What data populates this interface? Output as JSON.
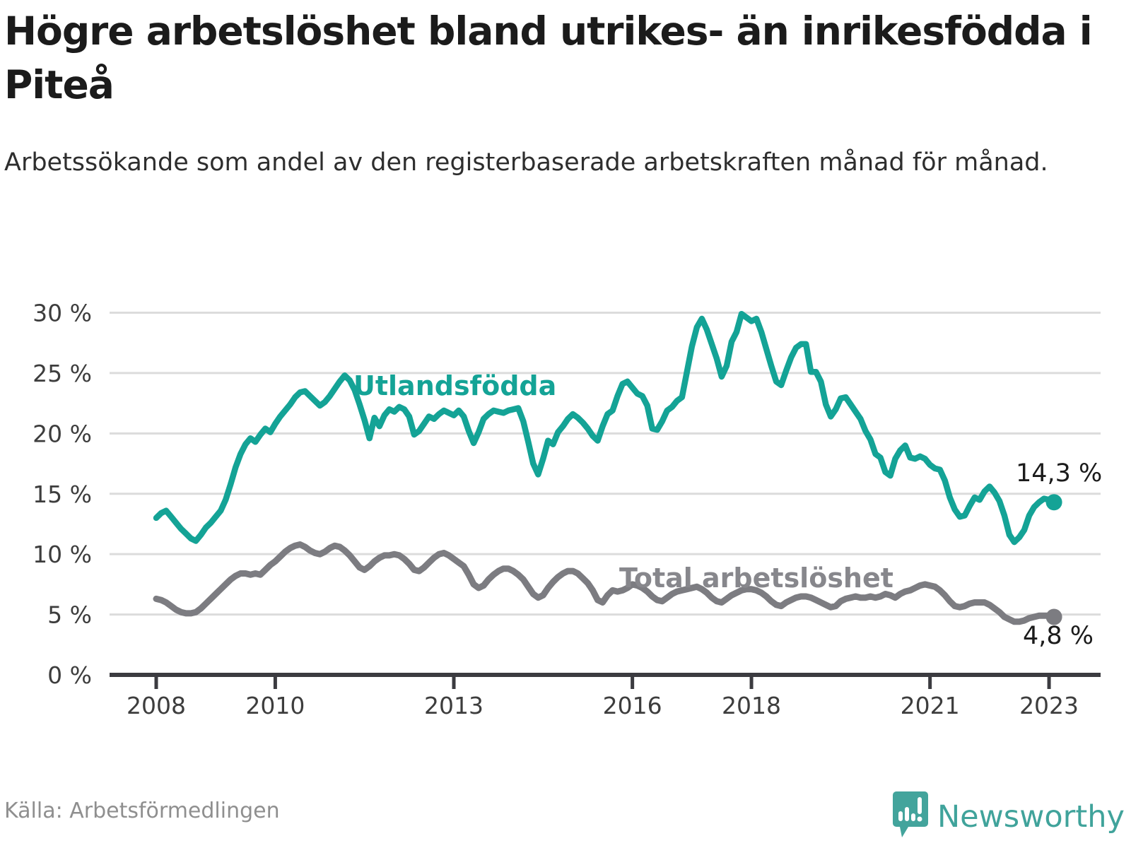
{
  "title": "Högre arbetslöshet bland utrikes- än inrikesfödda i Piteå",
  "subtitle": "Arbetssökande som andel av den registerbaserade arbetskraften månad för månad.",
  "source": "Källa: Arbetsförmedlingen",
  "logo": {
    "text": "Newsworthy"
  },
  "annotations": {
    "utlandsfodda_label": "Utlandsfödda",
    "total_label": "Total arbetslöshet",
    "end_value_utlandsfodda": "14,3 %",
    "end_value_total": "4,8 %"
  },
  "colors": {
    "teal": "#14a396",
    "gray_line": "#7c7c81",
    "gray_label": "#87878c",
    "grid": "#dcdcdc",
    "axis": "#3b3b40",
    "logo_teal": "#40a39b"
  },
  "chart_data": {
    "type": "line",
    "title": "Högre arbetslöshet bland utrikes- än inrikesfödda i Piteå",
    "ylabel": "Arbetssökande som andel av den registerbaserade arbetskraften",
    "unit": "%",
    "x_start": "2008-01",
    "x_end": "2023-02",
    "x_frequency": "monthly",
    "grid": "horizontal-only",
    "ylim": [
      0,
      30
    ],
    "y_ticks": [
      {
        "value": 0,
        "label": "0 %"
      },
      {
        "value": 5,
        "label": "5 %"
      },
      {
        "value": 10,
        "label": "10 %"
      },
      {
        "value": 15,
        "label": "15 %"
      },
      {
        "value": 20,
        "label": "20 %"
      },
      {
        "value": 25,
        "label": "25 %"
      },
      {
        "value": 30,
        "label": "30 %"
      }
    ],
    "x_ticks": [
      {
        "month_index": 0,
        "label": "2008"
      },
      {
        "month_index": 24,
        "label": "2010"
      },
      {
        "month_index": 60,
        "label": "2013"
      },
      {
        "month_index": 96,
        "label": "2016"
      },
      {
        "month_index": 120,
        "label": "2018"
      },
      {
        "month_index": 156,
        "label": "2021"
      },
      {
        "month_index": 180,
        "label": "2023"
      }
    ],
    "series": [
      {
        "name": "Utlandsfödda",
        "color": "#14a396",
        "width": 8.5,
        "last_value_label": "14,3 %",
        "values": [
          13.0,
          13.4,
          13.6,
          13.1,
          12.6,
          12.1,
          11.7,
          11.3,
          11.1,
          11.6,
          12.2,
          12.6,
          13.1,
          13.6,
          14.5,
          15.8,
          17.2,
          18.3,
          19.1,
          19.6,
          19.3,
          19.9,
          20.4,
          20.1,
          20.8,
          21.4,
          21.9,
          22.4,
          23.0,
          23.4,
          23.5,
          23.1,
          22.7,
          22.3,
          22.6,
          23.1,
          23.7,
          24.3,
          24.8,
          24.4,
          23.6,
          22.4,
          21.1,
          19.6,
          21.3,
          20.6,
          21.5,
          22.0,
          21.8,
          22.2,
          22.0,
          21.4,
          19.9,
          20.2,
          20.8,
          21.4,
          21.2,
          21.6,
          21.9,
          21.7,
          21.5,
          21.9,
          21.4,
          20.2,
          19.2,
          20.1,
          21.2,
          21.6,
          21.9,
          21.8,
          21.7,
          21.9,
          22.0,
          22.1,
          21.0,
          19.3,
          17.5,
          16.6,
          17.9,
          19.4,
          19.1,
          20.1,
          20.6,
          21.2,
          21.6,
          21.3,
          20.9,
          20.4,
          19.8,
          19.4,
          20.6,
          21.6,
          21.9,
          23.1,
          24.1,
          24.3,
          23.8,
          23.3,
          23.1,
          22.3,
          20.4,
          20.3,
          21.0,
          21.9,
          22.2,
          22.7,
          23.0,
          25.1,
          27.2,
          28.8,
          29.5,
          28.6,
          27.4,
          26.2,
          24.7,
          25.6,
          27.6,
          28.4,
          29.9,
          29.6,
          29.3,
          29.5,
          28.4,
          27.0,
          25.6,
          24.3,
          24.0,
          25.2,
          26.3,
          27.1,
          27.4,
          27.4,
          25.1,
          25.1,
          24.3,
          22.4,
          21.4,
          22.0,
          22.9,
          23.0,
          22.4,
          21.8,
          21.2,
          20.2,
          19.5,
          18.3,
          18.0,
          16.8,
          16.5,
          17.9,
          18.6,
          19.0,
          18.0,
          17.9,
          18.1,
          17.9,
          17.4,
          17.1,
          17.0,
          16.1,
          14.7,
          13.7,
          13.1,
          13.2,
          14.0,
          14.7,
          14.5,
          15.2,
          15.6,
          15.1,
          14.4,
          13.2,
          11.6,
          11.0,
          11.4,
          12.0,
          13.2,
          13.9,
          14.3,
          14.6,
          14.5,
          14.3
        ]
      },
      {
        "name": "Total arbetslöshet",
        "color": "#7c7c81",
        "width": 9,
        "last_value_label": "4,8 %",
        "values": [
          6.3,
          6.2,
          6.0,
          5.7,
          5.4,
          5.2,
          5.1,
          5.1,
          5.2,
          5.5,
          5.9,
          6.3,
          6.7,
          7.1,
          7.5,
          7.9,
          8.2,
          8.4,
          8.4,
          8.3,
          8.4,
          8.3,
          8.7,
          9.1,
          9.4,
          9.8,
          10.2,
          10.5,
          10.7,
          10.8,
          10.6,
          10.3,
          10.1,
          10.0,
          10.2,
          10.5,
          10.7,
          10.6,
          10.3,
          9.9,
          9.4,
          8.9,
          8.7,
          9.0,
          9.4,
          9.7,
          9.9,
          9.9,
          10.0,
          9.9,
          9.6,
          9.2,
          8.7,
          8.6,
          8.9,
          9.3,
          9.7,
          10.0,
          10.1,
          9.9,
          9.6,
          9.3,
          9.0,
          8.3,
          7.5,
          7.2,
          7.4,
          7.9,
          8.3,
          8.6,
          8.8,
          8.8,
          8.6,
          8.3,
          7.9,
          7.3,
          6.7,
          6.4,
          6.6,
          7.2,
          7.7,
          8.1,
          8.4,
          8.6,
          8.6,
          8.4,
          8.0,
          7.6,
          7.0,
          6.2,
          6.0,
          6.6,
          7.0,
          6.9,
          7.0,
          7.2,
          7.5,
          7.4,
          7.2,
          6.9,
          6.5,
          6.2,
          6.1,
          6.4,
          6.7,
          6.9,
          7.0,
          7.1,
          7.2,
          7.3,
          7.1,
          6.8,
          6.4,
          6.1,
          6.0,
          6.3,
          6.6,
          6.8,
          7.0,
          7.1,
          7.1,
          7.0,
          6.8,
          6.5,
          6.1,
          5.8,
          5.7,
          6.0,
          6.2,
          6.4,
          6.5,
          6.5,
          6.4,
          6.2,
          6.0,
          5.8,
          5.6,
          5.7,
          6.1,
          6.3,
          6.4,
          6.5,
          6.4,
          6.4,
          6.5,
          6.4,
          6.5,
          6.7,
          6.6,
          6.4,
          6.7,
          6.9,
          7.0,
          7.2,
          7.4,
          7.5,
          7.4,
          7.3,
          7.0,
          6.6,
          6.1,
          5.7,
          5.6,
          5.7,
          5.9,
          6.0,
          6.0,
          6.0,
          5.8,
          5.5,
          5.2,
          4.8,
          4.6,
          4.4,
          4.4,
          4.5,
          4.7,
          4.8,
          4.9,
          4.9,
          4.9,
          4.8
        ]
      }
    ]
  }
}
